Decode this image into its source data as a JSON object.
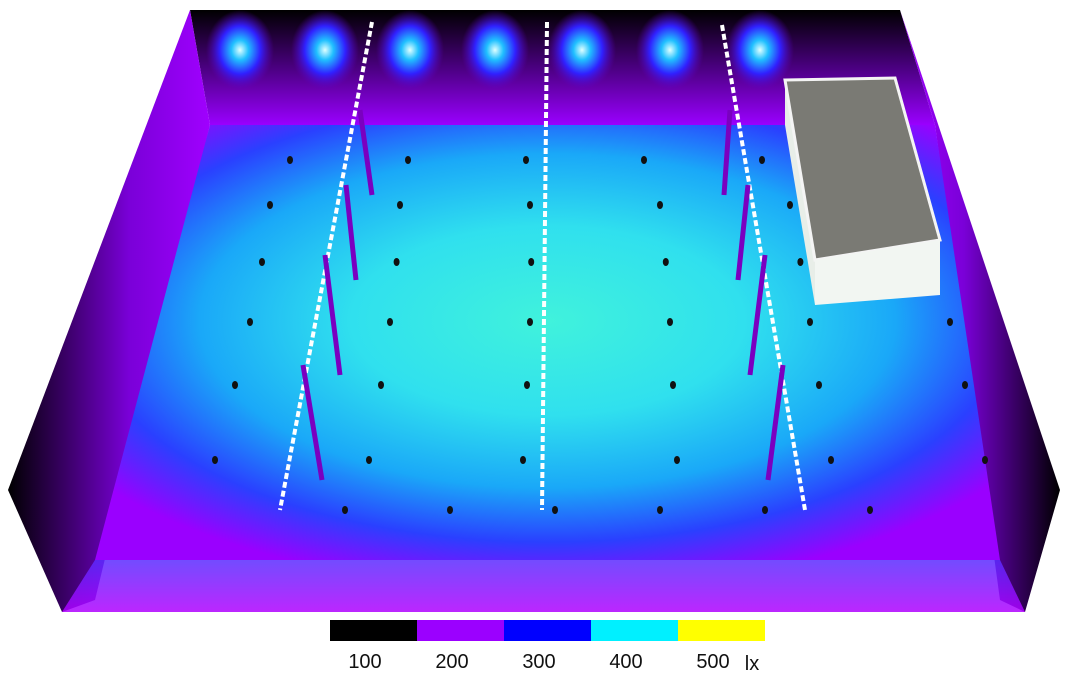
{
  "legend": {
    "ticks": [
      100,
      200,
      300,
      400,
      500
    ],
    "unit": "lx",
    "colors": [
      "#000000",
      "#9b00ff",
      "#0000ff",
      "#00f0ff",
      "#ffff00"
    ]
  }
}
